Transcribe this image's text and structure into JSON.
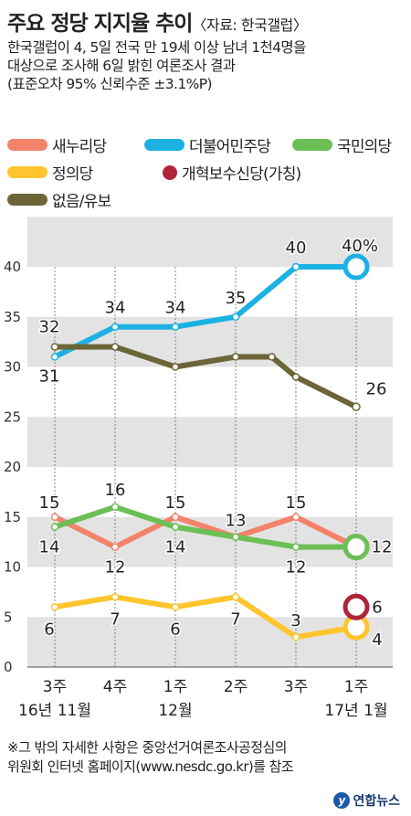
{
  "header": {
    "title": "주요 정당 지지율 추이",
    "source": "〈자료: 한국갤럽〉",
    "desc_lines": [
      "한국갤럽이 4, 5일 전국 만 19세 이상 남녀 1천4명을",
      "대상으로 조사해 6일 밝힌 여론조사 결과",
      "(표준오차 95% 신뢰수준 ±3.1%P)"
    ]
  },
  "legend": [
    {
      "label": "새누리당",
      "color": "#f4826a",
      "shape": "bar"
    },
    {
      "label": "더불어민주당",
      "color": "#1cb1e3",
      "shape": "bar"
    },
    {
      "label": "국민의당",
      "color": "#6cbf55",
      "shape": "bar"
    },
    {
      "label": "정의당",
      "color": "#ffc52e",
      "shape": "bar"
    },
    {
      "label": "개혁보수신당(가칭)",
      "color": "#b0243c",
      "shape": "circle"
    },
    {
      "label": "없음/유보",
      "color": "#6b6538",
      "shape": "bar"
    }
  ],
  "chart_data": {
    "type": "line",
    "x_labels": [
      "3주",
      "4주",
      "1주",
      "2주",
      "3주",
      "1주"
    ],
    "x_sublabels": [
      "16년 11월",
      "",
      "12월",
      "",
      "",
      "17년 1월"
    ],
    "y_ticks": [
      0,
      5,
      10,
      15,
      20,
      25,
      30,
      35,
      40
    ],
    "ylim": [
      0,
      45
    ],
    "series": [
      {
        "name": "더불어민주당",
        "color": "#1cb1e3",
        "values": [
          31,
          34,
          34,
          35,
          40,
          40
        ],
        "labels": [
          "31",
          "34",
          "34",
          "35",
          "40",
          "40%"
        ]
      },
      {
        "name": "없음/유보",
        "color": "#6b6538",
        "values": [
          32,
          32,
          30,
          31,
          31,
          29,
          26
        ],
        "x_index": [
          0,
          1,
          2,
          3,
          3.6,
          4,
          5
        ],
        "labels": [
          "32",
          "",
          "",
          "",
          "",
          "",
          "26"
        ]
      },
      {
        "name": "새누리당",
        "color": "#f4826a",
        "values": [
          15,
          12,
          15,
          13,
          15,
          12
        ],
        "labels": [
          "15",
          "12",
          "15",
          "13",
          "15",
          "12"
        ]
      },
      {
        "name": "국민의당",
        "color": "#6cbf55",
        "values": [
          14,
          16,
          14,
          13,
          12,
          12
        ],
        "labels": [
          "14",
          "16",
          "14",
          "",
          "12",
          ""
        ]
      },
      {
        "name": "정의당",
        "color": "#ffc52e",
        "values": [
          6,
          7,
          6,
          7,
          3,
          4
        ],
        "labels": [
          "6",
          "7",
          "6",
          "7",
          "3",
          "4"
        ]
      },
      {
        "name": "개혁보수신당(가칭)",
        "color": "#b0243c",
        "values": [
          null,
          null,
          null,
          null,
          null,
          6
        ],
        "labels": [
          "",
          "",
          "",
          "",
          "",
          "6"
        ]
      }
    ]
  },
  "footer": {
    "lines": [
      "※그 밖의 자세한 사항은 중앙선거여론조사공정심의",
      "위원회 인터넷 홈페이지(www.nesdc.go.kr)를 참조"
    ],
    "logo": "연합뉴스"
  }
}
